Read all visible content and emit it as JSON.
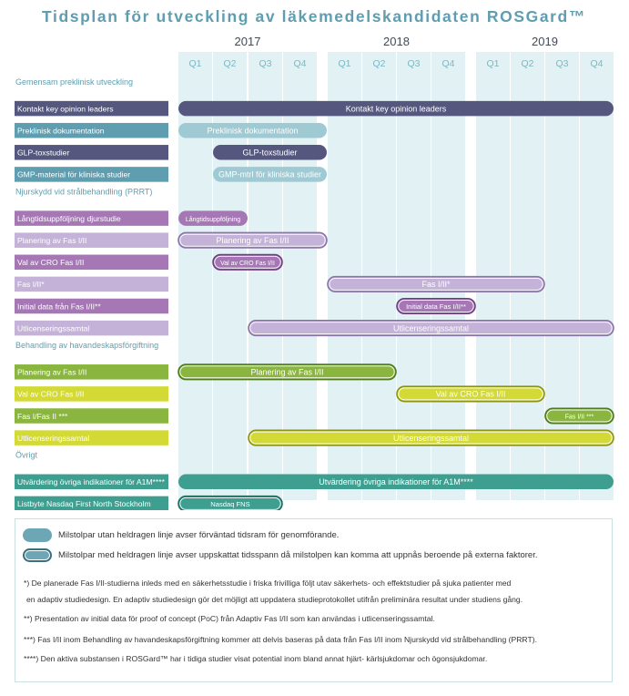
{
  "chart_data": {
    "type": "gantt",
    "title": "Tidsplan för utveckling av läkemedelskandidaten ROSGard™",
    "years": [
      "2017",
      "2018",
      "2019"
    ],
    "quarters": [
      "Q1",
      "Q2",
      "Q3",
      "Q4",
      "Q1",
      "Q2",
      "Q3",
      "Q4",
      "Q1",
      "Q2",
      "Q3",
      "Q4"
    ],
    "colors": {
      "navy": "#55577e",
      "teal": "#5e9eb0",
      "purple": "#a577b4",
      "lavender": "#c4b2d9",
      "green": "#8ab63f",
      "lime": "#d3d935",
      "seagreen": "#3e9e8f",
      "column": "#e2f2f4",
      "section": "#5e9eb0"
    },
    "rows": [
      {
        "kind": "section",
        "label": "Gemensam preklinisk utveckling"
      },
      {
        "kind": "task",
        "label": "Kontakt key opinion leaders",
        "color": "navy",
        "bar": "Kontakt key opinion leaders",
        "start": 0,
        "end": 12,
        "outlined": false,
        "bar_color": "navy"
      },
      {
        "kind": "task",
        "label": "Preklinisk dokumentation",
        "color": "teal",
        "bar": "Preklinisk dokumentation",
        "start": 0,
        "end": 4,
        "outlined": false,
        "bar_color": "teal_light"
      },
      {
        "kind": "task",
        "label": "GLP-toxstudier",
        "color": "navy",
        "bar": "GLP-toxstudier",
        "start": 1,
        "end": 4,
        "outlined": false,
        "bar_color": "navy"
      },
      {
        "kind": "task",
        "label": "GMP-material för kliniska studier",
        "color": "teal",
        "bar": "GMP-mtrl för kliniska studier",
        "start": 1,
        "end": 4,
        "outlined": false,
        "bar_color": "teal_light"
      },
      {
        "kind": "section",
        "label": "Njurskydd vid strålbehandling (PRRT)"
      },
      {
        "kind": "task",
        "label": "Långtidsuppföljning djurstudie",
        "color": "purple",
        "bar": "Långtidsuppföljning",
        "start": 0,
        "end": 2,
        "outlined": false,
        "bar_color": "purple"
      },
      {
        "kind": "task",
        "label": "Planering av Fas I/II",
        "color": "lavender",
        "bar": "Planering av Fas I/II",
        "start": 0,
        "end": 4,
        "outlined": true,
        "bar_color": "lavender"
      },
      {
        "kind": "task",
        "label": "Val av CRO Fas I/II",
        "color": "purple",
        "bar": "Val av CRO Fas I/II",
        "start": 1,
        "end": 3,
        "outlined": true,
        "bar_color": "purple"
      },
      {
        "kind": "task",
        "label": "Fas I/II*",
        "color": "lavender",
        "bar": "Fas I/II*",
        "start": 4,
        "end": 10,
        "outlined": true,
        "bar_color": "lavender"
      },
      {
        "kind": "task",
        "label": "Initial data från Fas I/II**",
        "color": "purple",
        "bar": "Initial data Fas I/II**",
        "start": 6,
        "end": 8,
        "outlined": true,
        "bar_color": "purple"
      },
      {
        "kind": "task",
        "label": "Utlicenseringssamtal",
        "color": "lavender",
        "bar": "Utlicenseringssamtal",
        "start": 2,
        "end": 12,
        "outlined": true,
        "bar_color": "lavender"
      },
      {
        "kind": "section",
        "label": "Behandling av havandeskapsförgiftning"
      },
      {
        "kind": "task",
        "label": "Planering av Fas I/II",
        "color": "green",
        "bar": "Planering av Fas I/II",
        "start": 0,
        "end": 6,
        "outlined": true,
        "bar_color": "green"
      },
      {
        "kind": "task",
        "label": "Val av CRO Fas I/II",
        "color": "lime",
        "bar": "Val av CRO Fas I/II",
        "start": 6,
        "end": 10,
        "outlined": true,
        "bar_color": "lime"
      },
      {
        "kind": "task",
        "label": "Fas I/Fas II ***",
        "color": "green",
        "bar": "Fas I/II ***",
        "start": 10,
        "end": 12,
        "outlined": true,
        "bar_color": "green"
      },
      {
        "kind": "task",
        "label": "Utlicenseringssamtal",
        "color": "lime",
        "bar": "Utlicenseringssamtal",
        "start": 2,
        "end": 12,
        "outlined": true,
        "bar_color": "lime"
      },
      {
        "kind": "section",
        "label": "Övrigt"
      },
      {
        "kind": "task",
        "label": "Utvärdering övriga indikationer för A1M****",
        "color": "seagreen",
        "bar": "Utvärdering övriga indikationer för A1M****",
        "start": 0,
        "end": 12,
        "outlined": false,
        "bar_color": "seagreen"
      },
      {
        "kind": "task",
        "label": "Listbyte Nasdaq First North Stockholm",
        "color": "seagreen",
        "bar": "Nasdaq FNS",
        "start": 0,
        "end": 3,
        "outlined": true,
        "bar_color": "seagreen"
      }
    ]
  },
  "legend": {
    "items": [
      {
        "text": "Milstolpar utan heldragen linje avser förväntad tidsram för genomförande.",
        "outlined": false
      },
      {
        "text": "Milstolpar med heldragen linje avser uppskattat tidsspann då milstolpen kan komma att uppnås beroende på externa faktorer.",
        "outlined": true
      }
    ],
    "notes": [
      "*) De planerade Fas I/II-studierna inleds med en säkerhetsstudie i friska frivilliga följt utav säkerhets- och effektstudier på sjuka patienter med",
      "en adaptiv studiedesign. En adaptiv studiedesign gör det möjligt att uppdatera studieprotokollet utifrån preliminära resultat under studiens gång.",
      "**) Presentation av initial data för proof of concept (PoC) från Adaptiv Fas I/II som kan användas i utlicenseringssamtal.",
      "***) Fas I/II inom Behandling av havandeskapsförgiftning kommer att delvis baseras på data från Fas I/II inom Njurskydd vid strålbehandling (PRRT).",
      "****) Den aktiva substansen i ROSGard™ har i tidiga studier visat potential inom bland annat hjärt- kärlsjukdomar och ögonsjukdomar."
    ]
  }
}
